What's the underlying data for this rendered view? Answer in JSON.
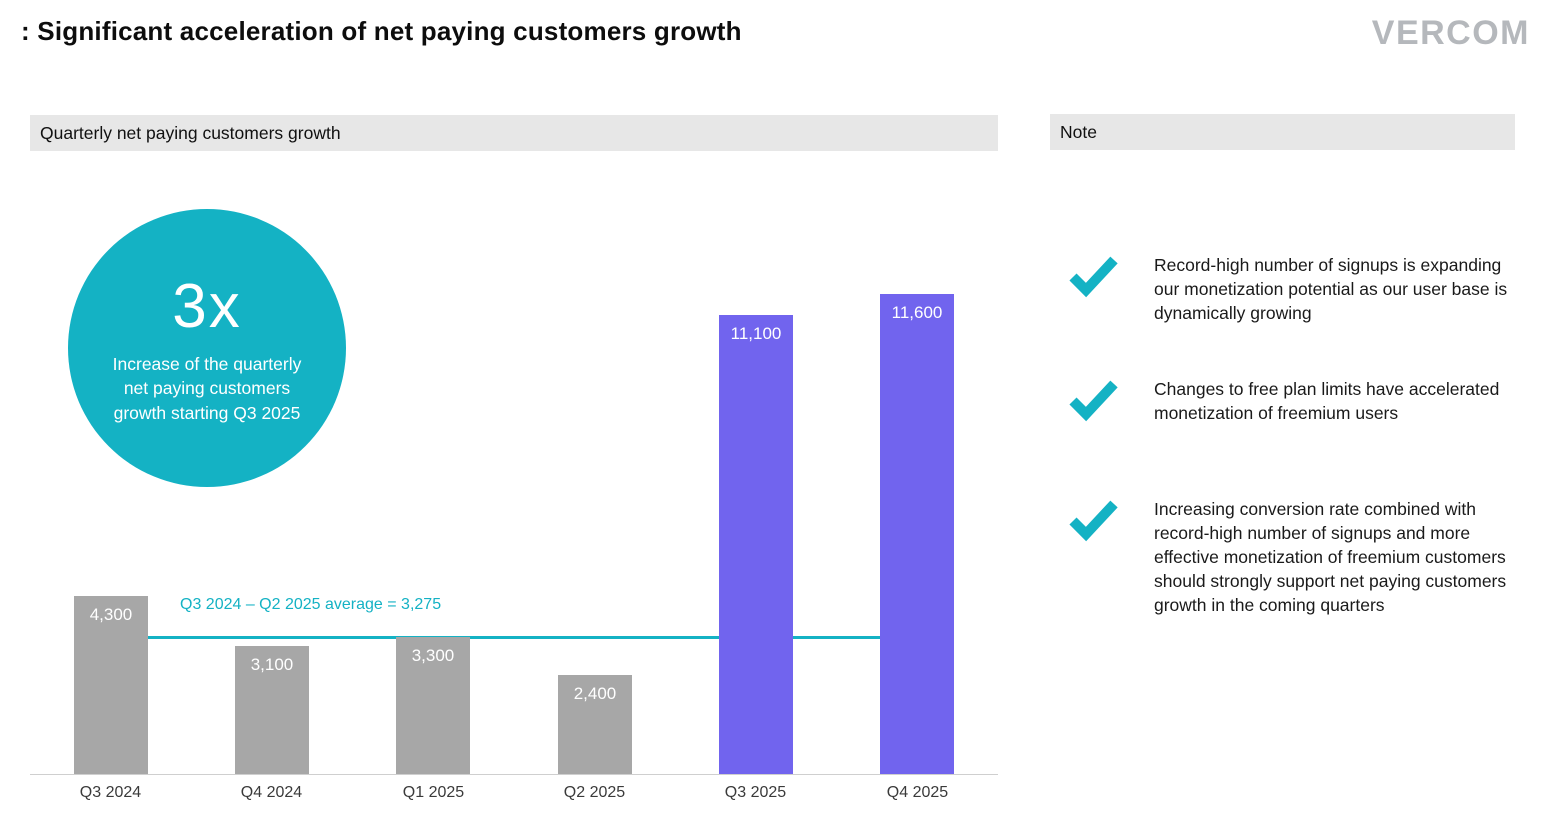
{
  "page": {
    "title": ": Significant acceleration of net paying customers growth",
    "logo": "VERCOM"
  },
  "chart_panel": {
    "header": "Quarterly net paying customers growth",
    "badge": {
      "multiplier": "3x",
      "caption": "Increase of the quarterly net paying customers growth starting Q3 2025"
    },
    "average_label": "Q3 2024 – Q2 2025 average = 3,275"
  },
  "note_panel": {
    "header": "Note",
    "items": [
      "Record-high number of signups is expanding our monetization potential as our user base is dynamically growing",
      "Changes to free plan limits have accelerated monetization of freemium users",
      "Increasing conversion rate combined with record-high number of signups and more effective monetization of freemium customers should strongly support net paying customers growth in the coming quarters"
    ]
  },
  "chart_data": {
    "type": "bar",
    "title": "Quarterly net paying customers growth",
    "categories": [
      "Q3 2024",
      "Q4 2024",
      "Q1 2025",
      "Q2 2025",
      "Q3 2025",
      "Q4 2025"
    ],
    "values": [
      4300,
      3100,
      3300,
      2400,
      11100,
      11600
    ],
    "labels": [
      "4,300",
      "3,100",
      "3,300",
      "2,400",
      "11,100",
      "11,600"
    ],
    "highlight_from_index": 4,
    "average_line": {
      "value": 3275,
      "label": "Q3 2024 – Q2 2025 average = 3,275"
    },
    "xlabel": "",
    "ylabel": "",
    "ylim": [
      0,
      11600
    ],
    "grid": false,
    "legend": "none"
  },
  "colors": {
    "teal": "#14b2c4",
    "purple": "#7164ee",
    "gray_bar": "#a7a7a7",
    "header_bg": "#e7e7e7"
  }
}
